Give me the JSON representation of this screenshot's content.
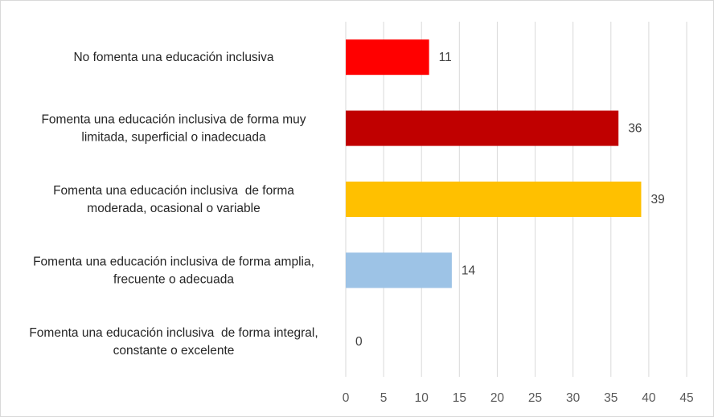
{
  "chart_data": {
    "type": "bar",
    "orientation": "horizontal",
    "categories": [
      [
        "No fomenta una educación inclusiva"
      ],
      [
        "Fomenta una educación inclusiva de forma muy",
        "limitada, superficial o inadecuada"
      ],
      [
        "Fomenta una educación inclusiva  de forma",
        "moderada, ocasional o variable"
      ],
      [
        "Fomenta una educación inclusiva de forma amplia,",
        "frecuente o adecuada"
      ],
      [
        "Fomenta una educación inclusiva  de forma integral,",
        "constante o excelente"
      ]
    ],
    "values": [
      11,
      36,
      39,
      14,
      0
    ],
    "data_labels": [
      "11",
      "36",
      "39",
      "14",
      "0"
    ],
    "colors": [
      "#ff0000",
      "#c00000",
      "#ffc000",
      "#9dc3e6",
      "#9dc3e6"
    ],
    "xlim": [
      0,
      45
    ],
    "x_ticks": [
      "0",
      "5",
      "10",
      "15",
      "20",
      "25",
      "30",
      "35",
      "40",
      "45"
    ],
    "grid": "vertical",
    "title": "",
    "xlabel": "",
    "ylabel": ""
  }
}
